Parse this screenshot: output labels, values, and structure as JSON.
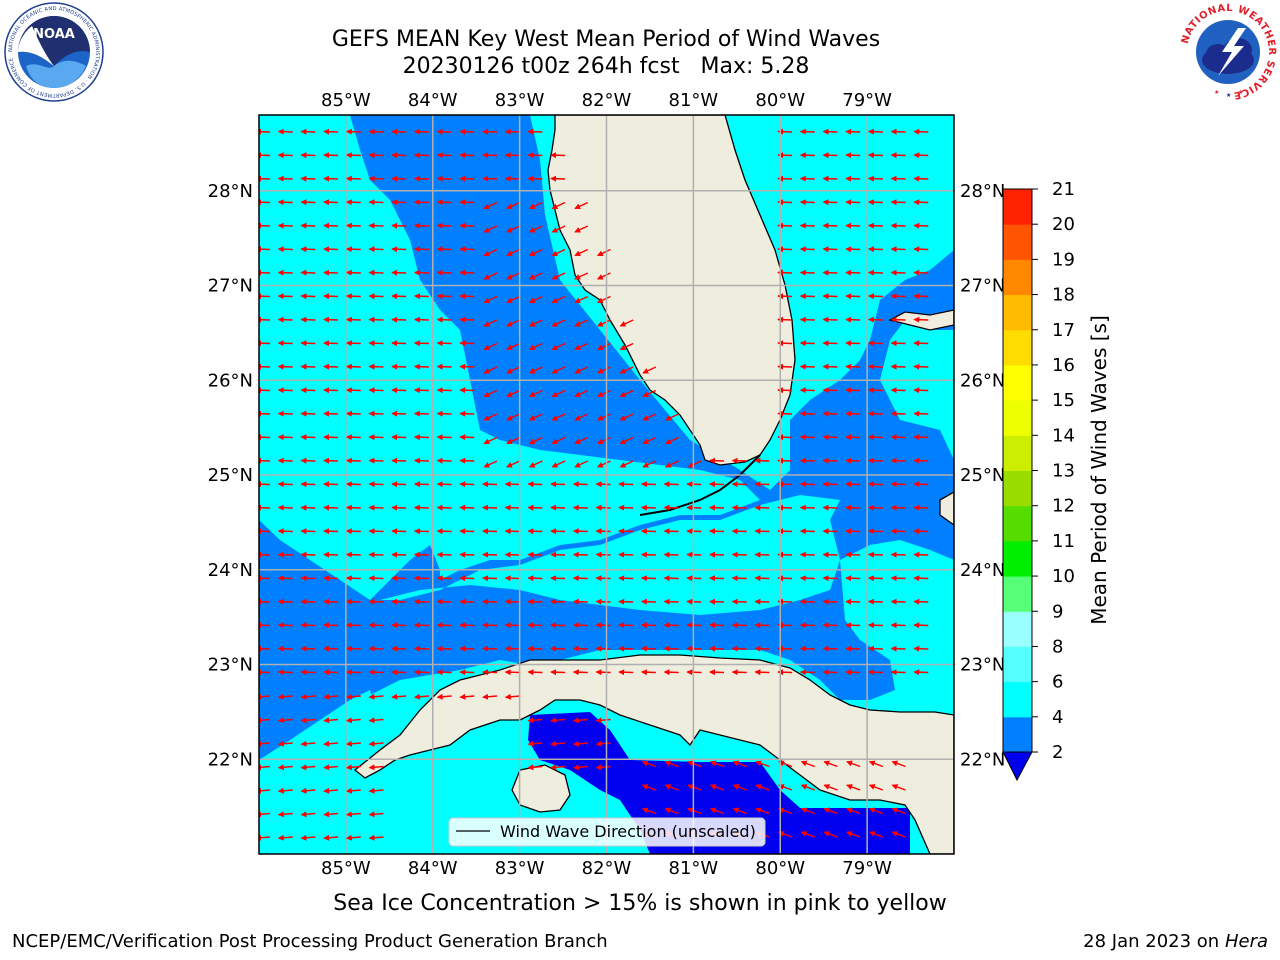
{
  "title": {
    "line1": "GEFS MEAN Key West Mean Period of Wind Waves",
    "line2": "20230126 t00z 264h fcst   Max: 5.28"
  },
  "logos": {
    "left_name": "NOAA",
    "left_ring": "NATIONAL OCEANIC AND ATMOSPHERIC ADMINISTRATION · U.S. DEPARTMENT OF COMMERCE",
    "right_ring": "NATIONAL WEATHER SERVICE"
  },
  "map": {
    "lon_labels": [
      "85°W",
      "84°W",
      "83°W",
      "82°W",
      "81°W",
      "80°W",
      "79°W"
    ],
    "lat_labels": [
      "28°N",
      "27°N",
      "26°N",
      "25°N",
      "24°N",
      "23°N",
      "22°N"
    ],
    "lon_range": [
      -86.0,
      -78.0
    ],
    "lat_range": [
      21.0,
      28.8
    ],
    "legend_label": "Wind Wave Direction (unscaled)",
    "colors": {
      "land": "#efedde",
      "cyan": "#00ffff",
      "blue": "#0080ff",
      "deep_blue": "#0000ee",
      "arrow": "#ff0000",
      "grid": "#b0b0b0"
    }
  },
  "colorbar": {
    "label": "Mean Period of Wind Waves [s]",
    "ticks": [
      "2",
      "4",
      "6",
      "8",
      "9",
      "10",
      "11",
      "12",
      "13",
      "14",
      "15",
      "16",
      "17",
      "18",
      "19",
      "20",
      "21"
    ],
    "colors": [
      "#0080ff",
      "#00ffff",
      "#55ffff",
      "#99ffff",
      "#55ff77",
      "#00ee00",
      "#55dd00",
      "#99dd00",
      "#ccee00",
      "#eeff00",
      "#ffff00",
      "#ffdd00",
      "#ffbb00",
      "#ff8800",
      "#ff5500",
      "#ff2200",
      "#ff0000"
    ],
    "under_color": "#0000ee"
  },
  "bottom_note": "Sea Ice Concentration > 15% is shown in pink to yellow",
  "credit_left": "NCEP/EMC/Verification Post Processing Product Generation Branch",
  "credit_right_date": "28 Jan 2023 on ",
  "credit_right_host": "Hera"
}
